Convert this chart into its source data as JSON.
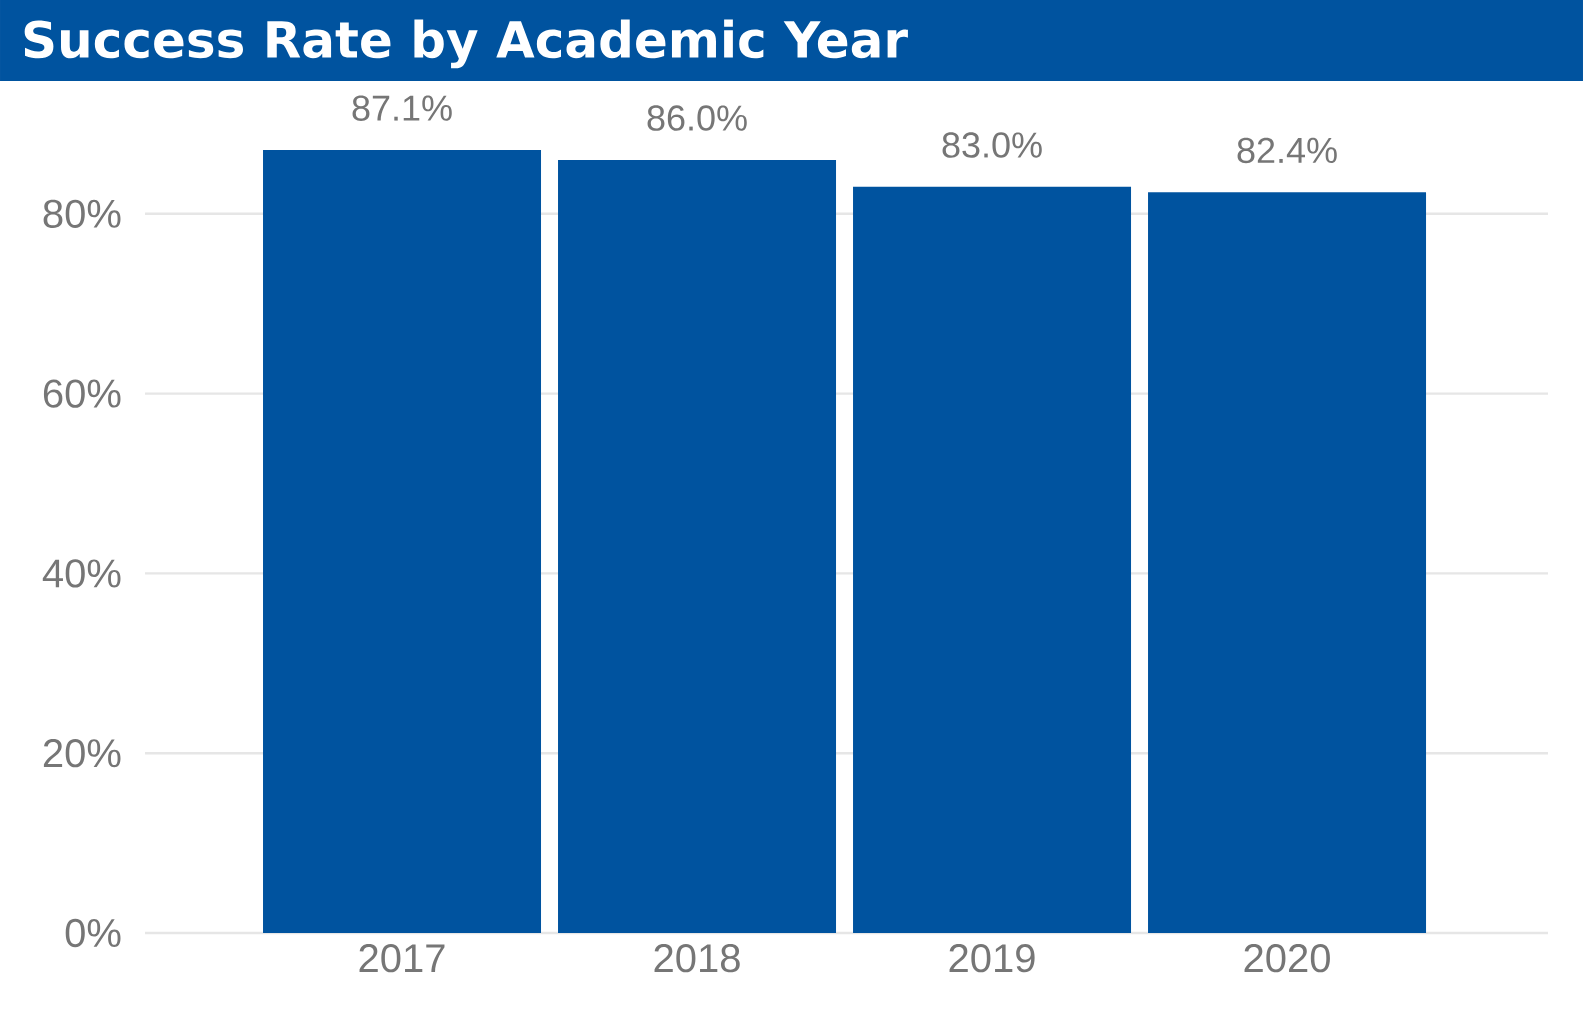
{
  "chart_data": {
    "type": "bar",
    "title": "Success Rate by Academic Year",
    "categories": [
      "2017",
      "2018",
      "2019",
      "2020"
    ],
    "values": [
      87.1,
      86.0,
      83.0,
      82.4
    ],
    "value_labels": [
      "87.1%",
      "86.0%",
      "83.0%",
      "82.4%"
    ],
    "color": "#00539f",
    "ylim": [
      0,
      87.1
    ],
    "yticks": [
      {
        "value": 0,
        "label": "0%"
      },
      {
        "value": 20,
        "label": "20%"
      },
      {
        "value": 40,
        "label": "40%"
      },
      {
        "value": 60,
        "label": "60%"
      },
      {
        "value": 80,
        "label": "80%"
      }
    ],
    "grid": "y"
  }
}
